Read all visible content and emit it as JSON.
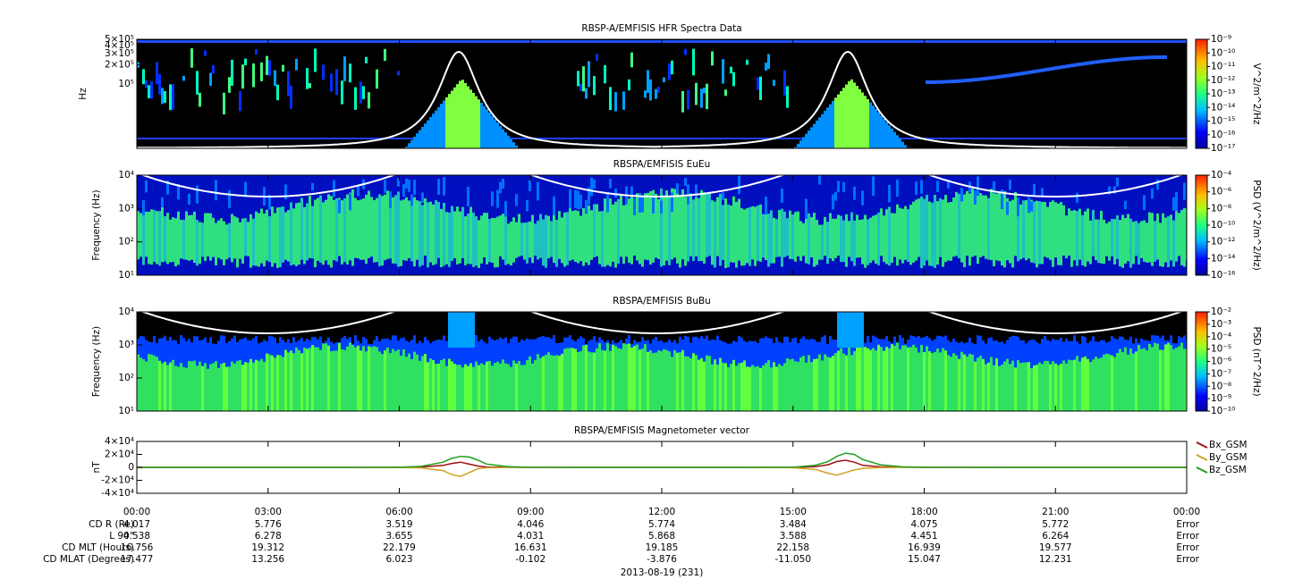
{
  "chart_data": [
    {
      "type": "spectrogram",
      "title": "RBSP-A/EMFISIS  HFR Spectra Data",
      "ylabel": "Hz",
      "log": true,
      "ylim": [
        10000,
        500000
      ],
      "yticks": [
        {
          "value": 500000,
          "label": "5×10⁵"
        },
        {
          "value": 400000,
          "label": "4×10⁵"
        },
        {
          "value": 300000,
          "label": "3×10⁵"
        },
        {
          "value": 200000,
          "label": "2×10⁵"
        },
        {
          "value": 100000,
          "label": "10⁵"
        }
      ],
      "colorbar_label": "V^2/m^2/Hz",
      "clim": [
        1e-17,
        1e-09
      ],
      "cticks": [
        {
          "value": 1e-09,
          "label": "10⁻⁹"
        },
        {
          "value": 1e-10,
          "label": "10⁻¹⁰"
        },
        {
          "value": 1e-11,
          "label": "10⁻¹¹"
        },
        {
          "value": 1e-12,
          "label": "10⁻¹²"
        },
        {
          "value": 1e-13,
          "label": "10⁻¹³"
        },
        {
          "value": 1e-14,
          "label": "10⁻¹⁴"
        },
        {
          "value": 1e-15,
          "label": "10⁻¹⁵"
        },
        {
          "value": 1e-16,
          "label": "10⁻¹⁶"
        },
        {
          "value": 1e-17,
          "label": "10⁻¹⁷"
        }
      ]
    },
    {
      "type": "spectrogram",
      "title": "RBSPA/EMFISIS  EuEu",
      "ylabel": "Frequency (Hz)",
      "log": true,
      "ylim": [
        10,
        10000
      ],
      "yticks": [
        {
          "value": 10000,
          "label": "10⁴"
        },
        {
          "value": 1000,
          "label": "10³"
        },
        {
          "value": 100,
          "label": "10²"
        },
        {
          "value": 10,
          "label": "10¹"
        }
      ],
      "colorbar_label": "PSD (V^2/m^2/Hz)",
      "clim": [
        1e-16,
        0.0001
      ],
      "cticks": [
        {
          "value": 0.0001,
          "label": "10⁻⁴"
        },
        {
          "value": 1e-06,
          "label": "10⁻⁶"
        },
        {
          "value": 1e-08,
          "label": "10⁻⁸"
        },
        {
          "value": 1e-10,
          "label": "10⁻¹⁰"
        },
        {
          "value": 1e-12,
          "label": "10⁻¹²"
        },
        {
          "value": 1e-14,
          "label": "10⁻¹⁴"
        },
        {
          "value": 1e-16,
          "label": "10⁻¹⁶"
        }
      ]
    },
    {
      "type": "spectrogram",
      "title": "RBSPA/EMFISIS  BuBu",
      "ylabel": "Frequency (Hz)",
      "log": true,
      "ylim": [
        10,
        10000
      ],
      "yticks": [
        {
          "value": 10000,
          "label": "10⁴"
        },
        {
          "value": 1000,
          "label": "10³"
        },
        {
          "value": 100,
          "label": "10²"
        },
        {
          "value": 10,
          "label": "10¹"
        }
      ],
      "colorbar_label": "PSD (nT^2/Hz)",
      "clim": [
        1e-10,
        0.01
      ],
      "cticks": [
        {
          "value": 0.01,
          "label": "10⁻²"
        },
        {
          "value": 0.001,
          "label": "10⁻³"
        },
        {
          "value": 0.0001,
          "label": "10⁻⁴"
        },
        {
          "value": 1e-05,
          "label": "10⁻⁵"
        },
        {
          "value": 1e-06,
          "label": "10⁻⁶"
        },
        {
          "value": 1e-07,
          "label": "10⁻⁷"
        },
        {
          "value": 1e-08,
          "label": "10⁻⁸"
        },
        {
          "value": 1e-09,
          "label": "10⁻⁹"
        },
        {
          "value": 1e-10,
          "label": "10⁻¹⁰"
        }
      ]
    },
    {
      "type": "line",
      "title": "RBSPA/EMFISIS  Magnetometer vector",
      "ylabel": "nT",
      "xlabel": "2013-08-19 (231)",
      "xlim": [
        0,
        24
      ],
      "xticks": [
        {
          "value": 0,
          "label": "00:00"
        },
        {
          "value": 3,
          "label": "03:00"
        },
        {
          "value": 6,
          "label": "06:00"
        },
        {
          "value": 9,
          "label": "09:00"
        },
        {
          "value": 12,
          "label": "12:00"
        },
        {
          "value": 15,
          "label": "15:00"
        },
        {
          "value": 18,
          "label": "18:00"
        },
        {
          "value": 21,
          "label": "21:00"
        },
        {
          "value": 24,
          "label": "00:00"
        }
      ],
      "ylim": [
        -40000,
        40000
      ],
      "yticks": [
        {
          "value": 40000,
          "label": "4×10⁴"
        },
        {
          "value": 20000,
          "label": "2×10⁴"
        },
        0,
        {
          "value": -20000,
          "label": "-2×10⁴"
        },
        {
          "value": -40000,
          "label": "-4×10⁴"
        }
      ],
      "x": [
        0,
        1,
        2,
        3,
        4,
        5,
        6,
        6.5,
        7,
        7.2,
        7.4,
        7.6,
        7.8,
        8,
        8.5,
        9,
        10,
        12,
        14,
        15,
        15.5,
        15.8,
        16,
        16.2,
        16.4,
        16.6,
        17,
        17.5,
        18,
        20,
        22,
        24
      ],
      "series": [
        {
          "name": "Bx_GSM",
          "color": "#a01010",
          "values": [
            0,
            0,
            0,
            0,
            0,
            0,
            100,
            500,
            3000,
            6000,
            8000,
            5000,
            2000,
            500,
            100,
            0,
            0,
            0,
            0,
            100,
            1000,
            4000,
            9000,
            11000,
            8000,
            3000,
            800,
            100,
            0,
            0,
            0,
            0
          ]
        },
        {
          "name": "By_GSM",
          "color": "#d0a020",
          "values": [
            0,
            0,
            0,
            0,
            0,
            0,
            -100,
            -800,
            -5000,
            -11000,
            -14000,
            -8000,
            -2000,
            -500,
            -100,
            0,
            0,
            0,
            0,
            -500,
            -3000,
            -9000,
            -12000,
            -8000,
            -4000,
            -1500,
            -300,
            0,
            0,
            0,
            0,
            0
          ]
        },
        {
          "name": "Bz_GSM",
          "color": "#20a020",
          "values": [
            0,
            0,
            0,
            0,
            0,
            0,
            200,
            1500,
            8000,
            14000,
            17000,
            16000,
            11000,
            5000,
            1000,
            200,
            0,
            0,
            0,
            300,
            3000,
            9000,
            17000,
            22000,
            20000,
            12000,
            4000,
            800,
            200,
            0,
            0,
            0
          ]
        }
      ]
    }
  ],
  "ephemeris": {
    "rows": [
      {
        "label": "CD R (Re)",
        "values": [
          "4.017",
          "5.776",
          "3.519",
          "4.046",
          "5.774",
          "3.484",
          "4.075",
          "5.772",
          "Error"
        ]
      },
      {
        "label": "L 90°",
        "values": [
          "4.538",
          "6.278",
          "3.655",
          "4.031",
          "5.868",
          "3.588",
          "4.451",
          "6.264",
          "Error"
        ]
      },
      {
        "label": "CD MLT (Hours)",
        "values": [
          "16.756",
          "19.312",
          "22.179",
          "16.631",
          "19.185",
          "22.158",
          "16.939",
          "19.577",
          "Error"
        ]
      },
      {
        "label": "CD MLAT (Degrees)",
        "values": [
          "17.477",
          "13.256",
          "6.023",
          "-0.102",
          "-3.876",
          "-11.050",
          "15.047",
          "12.231",
          "Error"
        ]
      }
    ]
  }
}
